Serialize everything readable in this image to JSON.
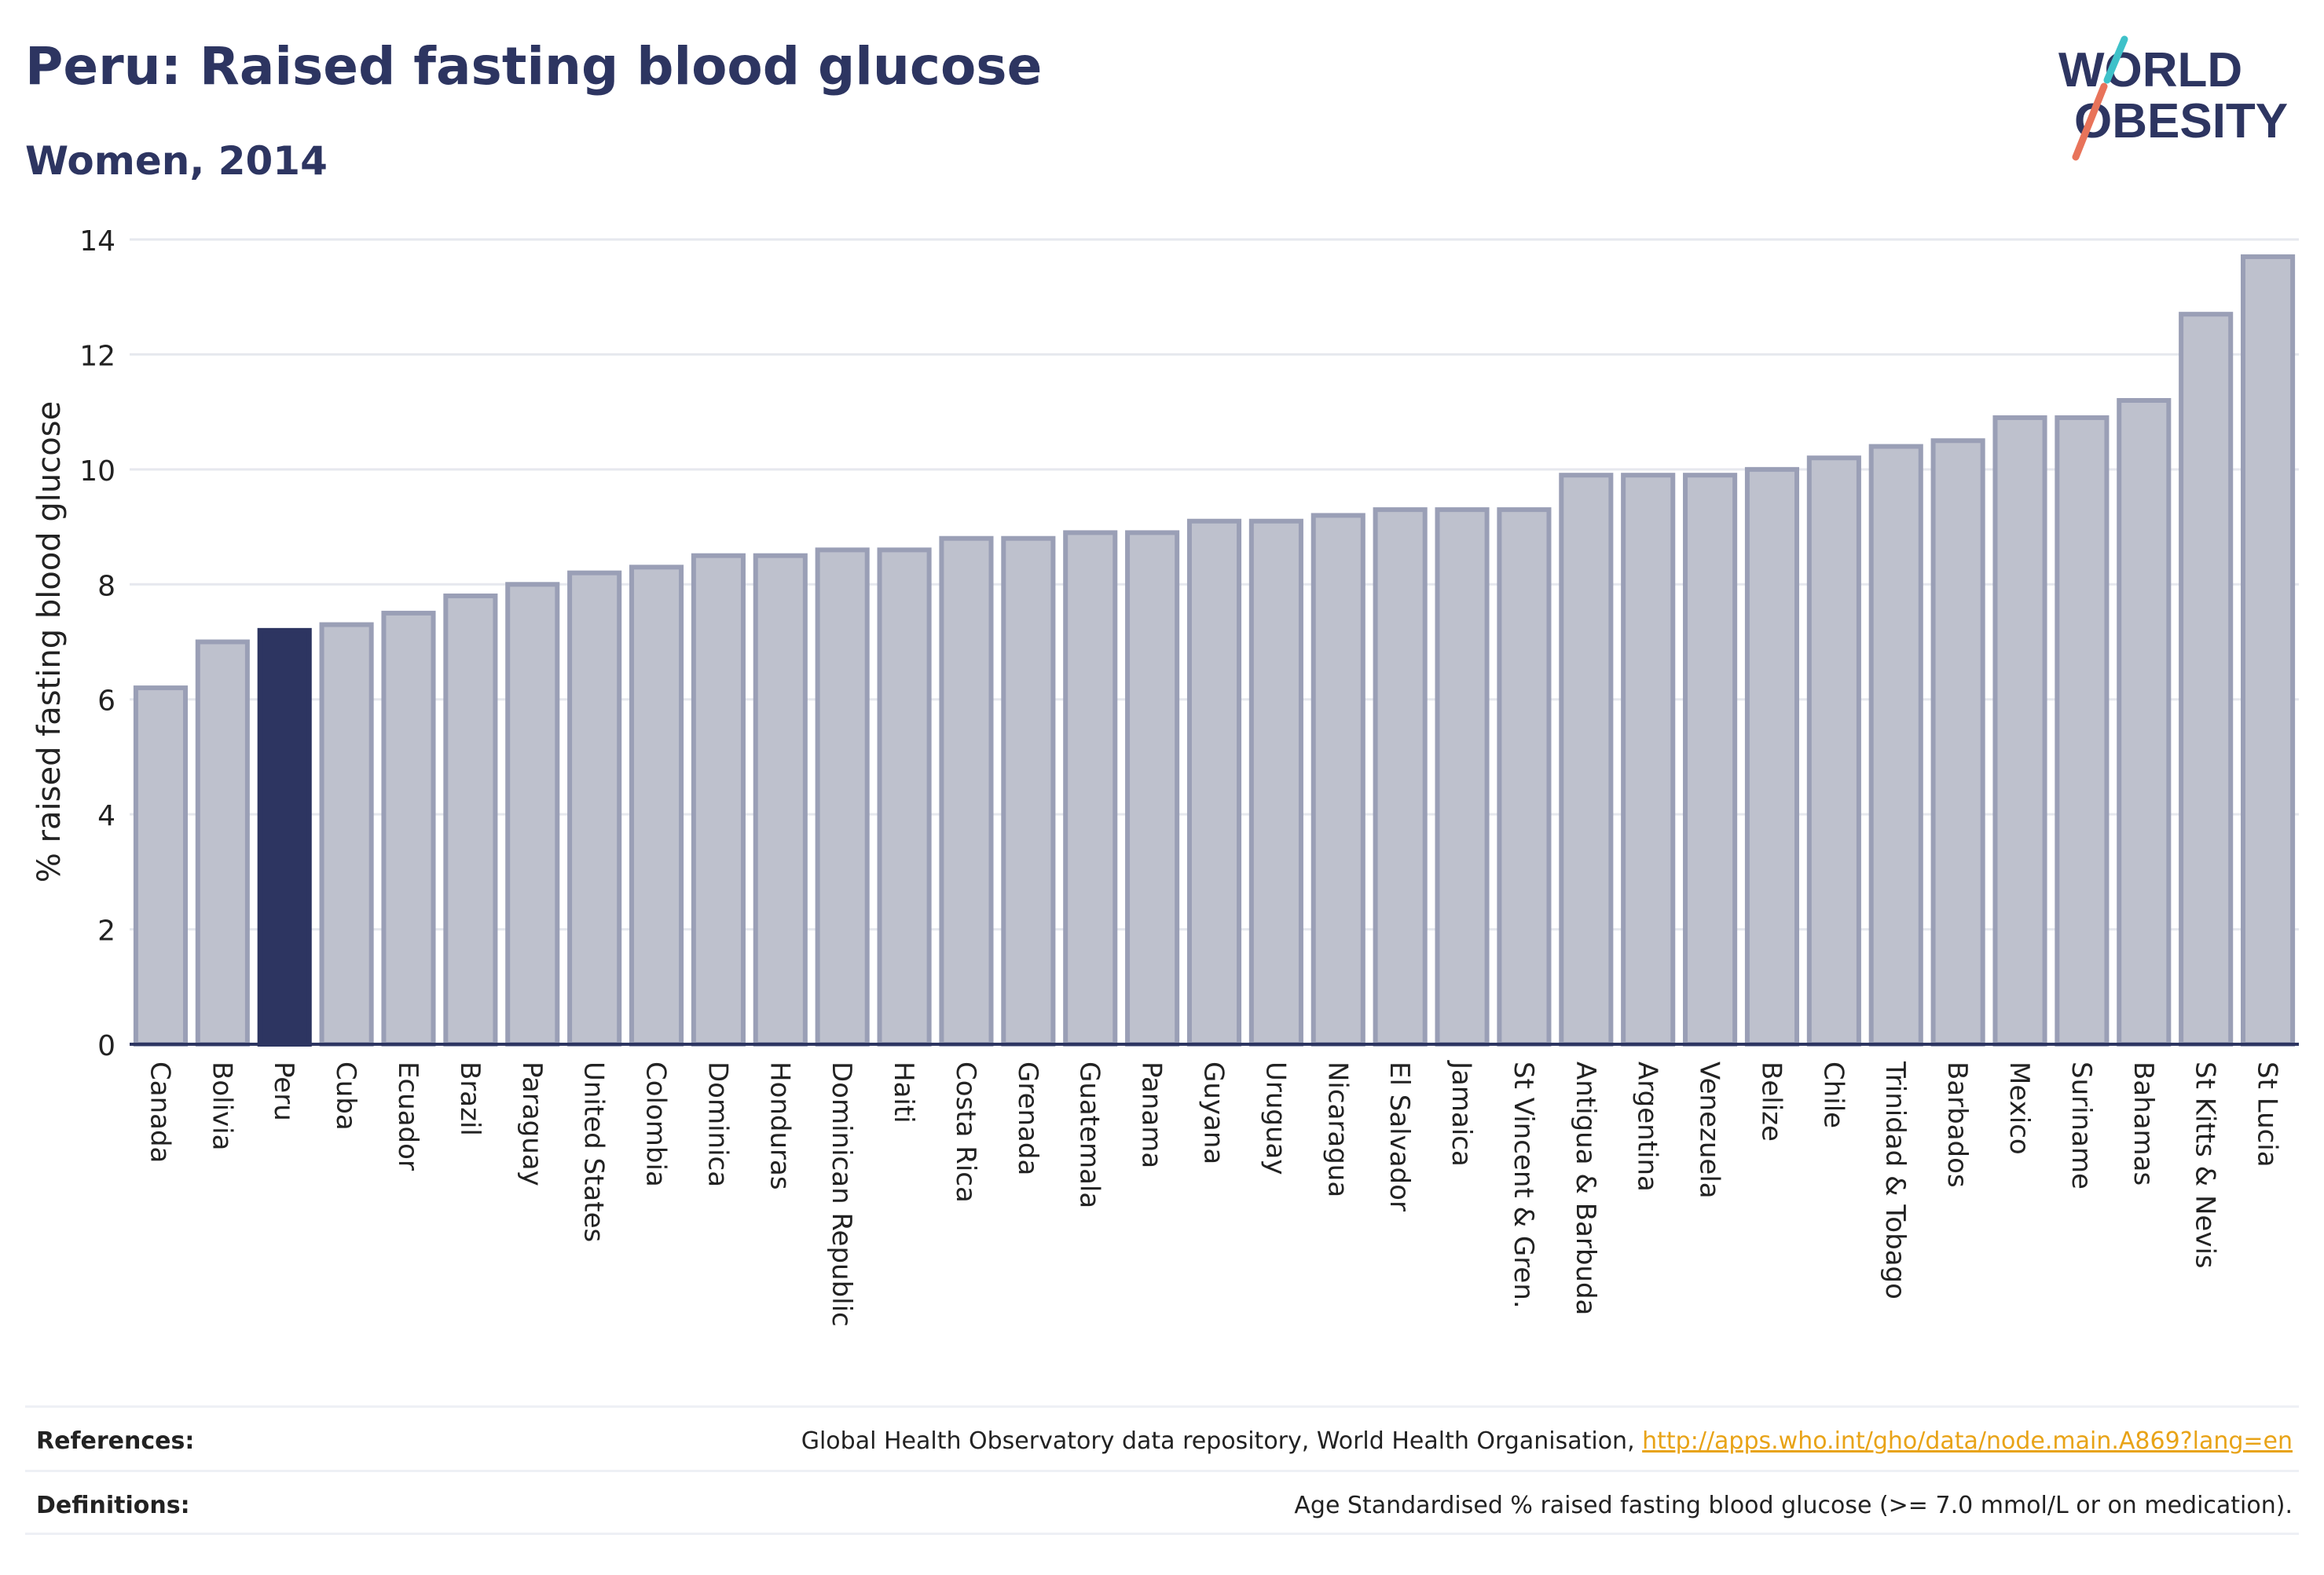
{
  "header": {
    "title": "Peru: Raised fasting blood glucose",
    "subtitle": "Women, 2014"
  },
  "logo": {
    "line1": "WORLD",
    "line2": "OBESITY",
    "color": "#2d3561",
    "accent_colors": [
      "#e8735a",
      "#3ec1c9"
    ]
  },
  "chart_data": {
    "type": "bar",
    "ylabel": "% raised fasting blood glucose",
    "xlabel": "",
    "ylim": [
      0,
      14
    ],
    "yticks": [
      0,
      2,
      4,
      6,
      8,
      10,
      12,
      14
    ],
    "grid": true,
    "highlight": "Peru",
    "colors": {
      "bar": "#bec1cd",
      "bar_border": "#9a9fb6",
      "highlight": "#2d3561",
      "grid": "#e6e8ee",
      "axis": "#2d3561"
    },
    "categories": [
      "Canada",
      "Bolivia",
      "Peru",
      "Cuba",
      "Ecuador",
      "Brazil",
      "Paraguay",
      "United States",
      "Colombia",
      "Dominica",
      "Honduras",
      "Dominican Republic",
      "Haiti",
      "Costa Rica",
      "Grenada",
      "Guatemala",
      "Panama",
      "Guyana",
      "Uruguay",
      "Nicaragua",
      "El Salvador",
      "Jamaica",
      "St Vincent & Gren.",
      "Antigua & Barbuda",
      "Argentina",
      "Venezuela",
      "Belize",
      "Chile",
      "Trinidad & Tobago",
      "Barbados",
      "Mexico",
      "Suriname",
      "Bahamas",
      "St Kitts & Nevis",
      "St Lucia"
    ],
    "values": [
      6.2,
      7.0,
      7.2,
      7.3,
      7.5,
      7.8,
      8.0,
      8.2,
      8.3,
      8.5,
      8.5,
      8.6,
      8.6,
      8.8,
      8.8,
      8.9,
      8.9,
      9.1,
      9.1,
      9.2,
      9.3,
      9.3,
      9.3,
      9.9,
      9.9,
      9.9,
      10.0,
      10.2,
      10.4,
      10.5,
      10.9,
      10.9,
      11.2,
      12.7,
      13.7
    ]
  },
  "footer": {
    "references_label": "References:",
    "references_text": "Global Health Observatory data repository, World Health Organisation, ",
    "references_link": "http://apps.who.int/gho/data/node.main.A869?lang=en",
    "definitions_label": "Definitions:",
    "definitions_text": "Age Standardised % raised fasting blood glucose (>= 7.0 mmol/L or on medication)."
  }
}
